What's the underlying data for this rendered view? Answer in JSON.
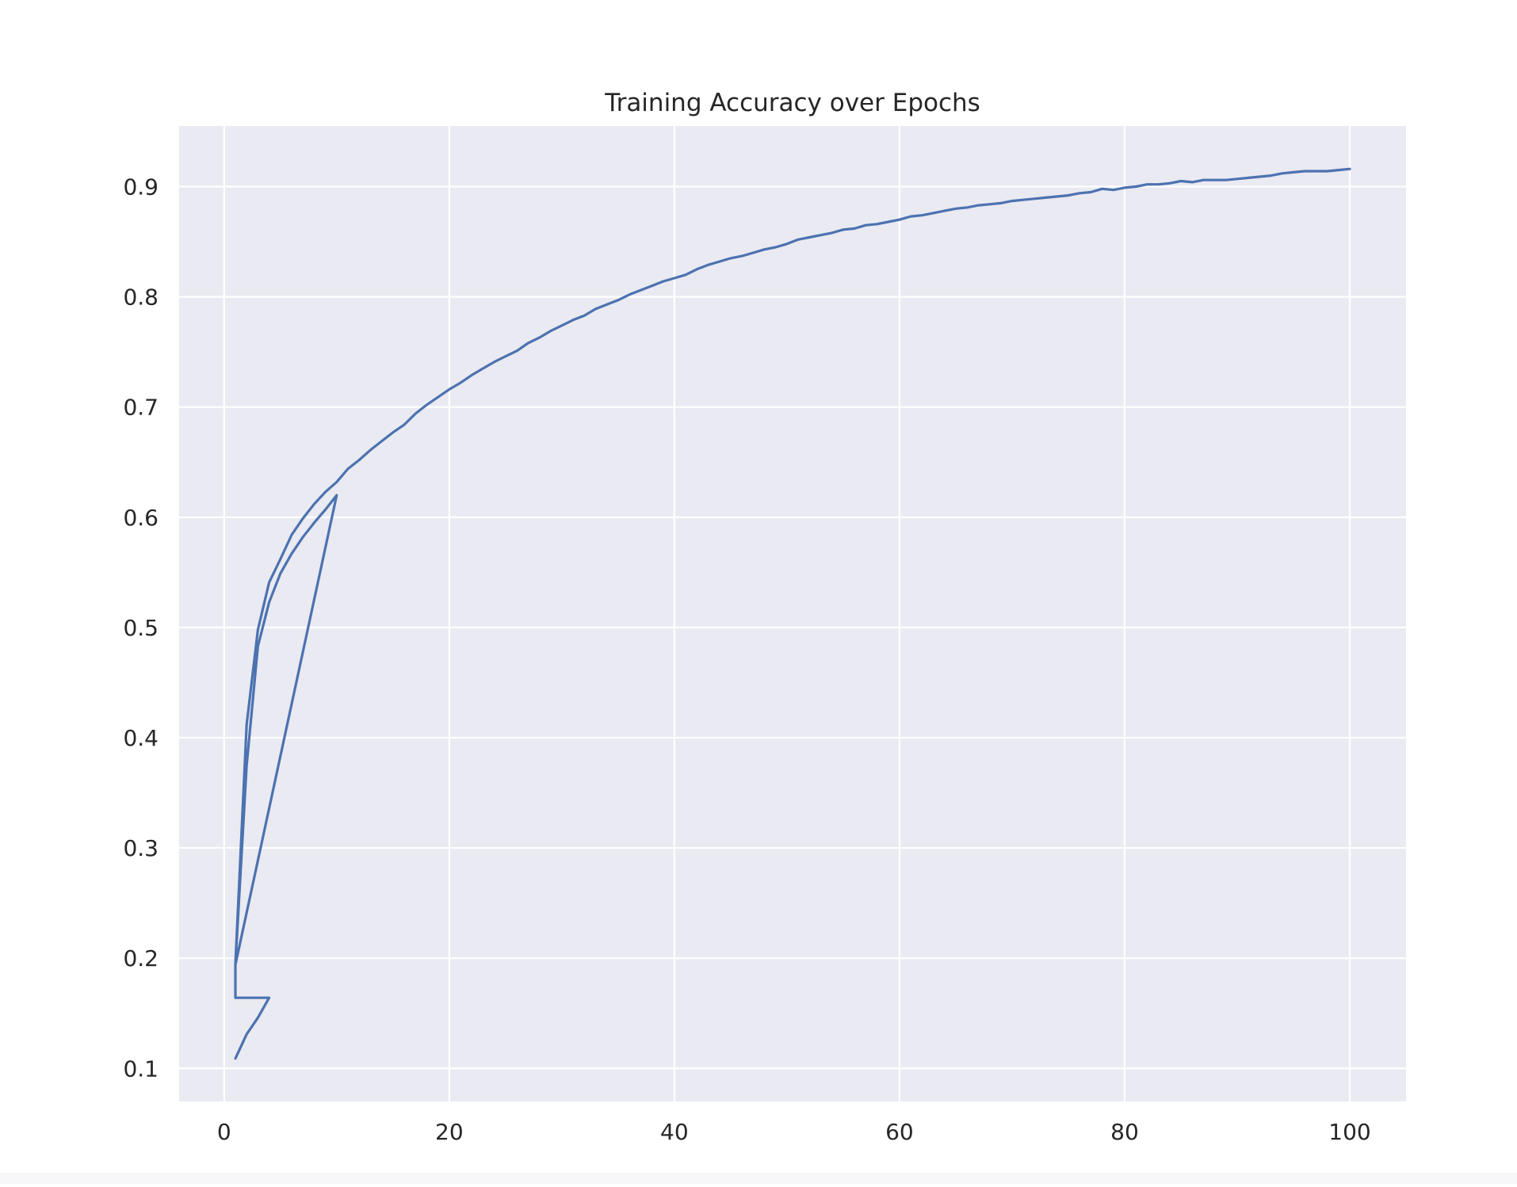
{
  "chart_data": {
    "type": "line",
    "title": "Training Accuracy over Epochs",
    "xlabel": "",
    "ylabel": "",
    "xlim": [
      -4,
      105
    ],
    "ylim": [
      0.07,
      0.955
    ],
    "xticks": [
      0,
      20,
      40,
      60,
      80,
      100
    ],
    "xtick_labels": [
      "0",
      "20",
      "40",
      "60",
      "80",
      "100"
    ],
    "yticks": [
      0.1,
      0.2,
      0.3,
      0.4,
      0.5,
      0.6,
      0.7,
      0.8,
      0.9
    ],
    "ytick_labels": [
      "0.1",
      "0.2",
      "0.3",
      "0.4",
      "0.5",
      "0.6",
      "0.7",
      "0.8",
      "0.9"
    ],
    "grid": true,
    "legend": "none",
    "colors": {
      "series": "#4c72b0",
      "plot_background": "#eaeaf2",
      "grid": "#ffffff"
    },
    "series": [
      {
        "x": [
          1,
          2,
          3,
          4,
          1,
          1,
          2,
          3,
          4,
          5,
          6,
          7,
          8,
          9,
          10,
          1,
          1,
          2,
          3,
          4,
          5,
          6,
          7,
          8,
          9,
          10,
          11,
          12,
          13,
          14,
          15,
          16,
          17,
          18,
          19,
          20,
          21,
          22,
          23,
          24,
          25,
          26,
          27,
          28,
          29,
          30,
          31,
          32,
          33,
          34,
          35,
          36,
          37,
          38,
          39,
          40,
          41,
          42,
          43,
          44,
          45,
          46,
          47,
          48,
          49,
          50,
          51,
          52,
          53,
          54,
          55,
          56,
          57,
          58,
          59,
          60,
          61,
          62,
          63,
          64,
          65,
          66,
          67,
          68,
          69,
          70,
          71,
          72,
          73,
          74,
          75,
          76,
          77,
          78,
          79,
          80,
          81,
          82,
          83,
          84,
          85,
          86,
          87,
          88,
          89,
          90,
          91,
          92,
          93,
          94,
          95,
          96,
          97,
          98,
          99,
          100
        ],
        "y": [
          0.109,
          0.131,
          0.146,
          0.164,
          0.164,
          0.195,
          0.375,
          0.483,
          0.523,
          0.549,
          0.567,
          0.582,
          0.595,
          0.607,
          0.62,
          0.194,
          0.195,
          0.412,
          0.498,
          0.541,
          0.562,
          0.584,
          0.599,
          0.612,
          0.623,
          0.632,
          0.644,
          0.652,
          0.661,
          0.669,
          0.677,
          0.684,
          0.694,
          0.702,
          0.709,
          0.716,
          0.722,
          0.729,
          0.735,
          0.741,
          0.746,
          0.751,
          0.758,
          0.763,
          0.769,
          0.774,
          0.779,
          0.783,
          0.789,
          0.793,
          0.797,
          0.802,
          0.806,
          0.81,
          0.814,
          0.817,
          0.82,
          0.825,
          0.829,
          0.832,
          0.835,
          0.837,
          0.84,
          0.843,
          0.845,
          0.848,
          0.852,
          0.854,
          0.856,
          0.858,
          0.861,
          0.862,
          0.865,
          0.866,
          0.868,
          0.87,
          0.873,
          0.874,
          0.876,
          0.878,
          0.88,
          0.881,
          0.883,
          0.884,
          0.885,
          0.887,
          0.888,
          0.889,
          0.89,
          0.891,
          0.892,
          0.894,
          0.895,
          0.898,
          0.897,
          0.899,
          0.9,
          0.902,
          0.902,
          0.903,
          0.905,
          0.904,
          0.906,
          0.906,
          0.906,
          0.907,
          0.908,
          0.909,
          0.91,
          0.912,
          0.913,
          0.914,
          0.914,
          0.914,
          0.915,
          0.916
        ]
      }
    ]
  }
}
